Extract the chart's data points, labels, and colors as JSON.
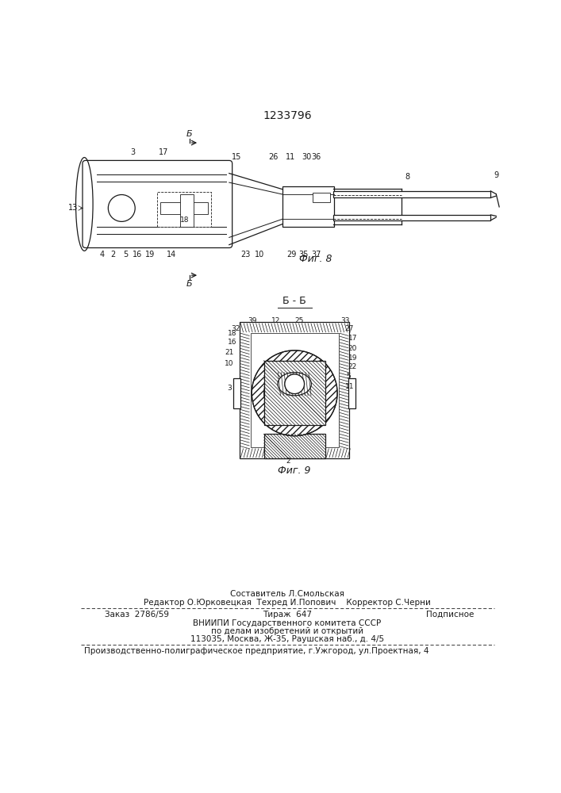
{
  "patent_number": "1233796",
  "fig8_label": "Фиг. 8",
  "fig9_label": "Фиг. 9",
  "section_label": "Б - Б",
  "footer_composer": "Составитель Л.Смольская",
  "footer_editor": "Редактор О.Юрковецкая  Техред И.Попович    Корректор С.Черни",
  "footer_order": "Заказ  2786/59",
  "footer_tirazh": "Тираж  647",
  "footer_podp": "Подписное",
  "footer_vnipi": "ВНИИПИ Государственного комитета СССР",
  "footer_po": "по делам изобретений и открытий",
  "footer_addr": "113035, Москва, Ж-35, Раушская наб., д. 4/5",
  "footer_factory": "Производственно-полиграфическое предприятие, г.Ужгород, ул.Проектная, 4",
  "bg_color": "#ffffff",
  "line_color": "#1a1a1a"
}
